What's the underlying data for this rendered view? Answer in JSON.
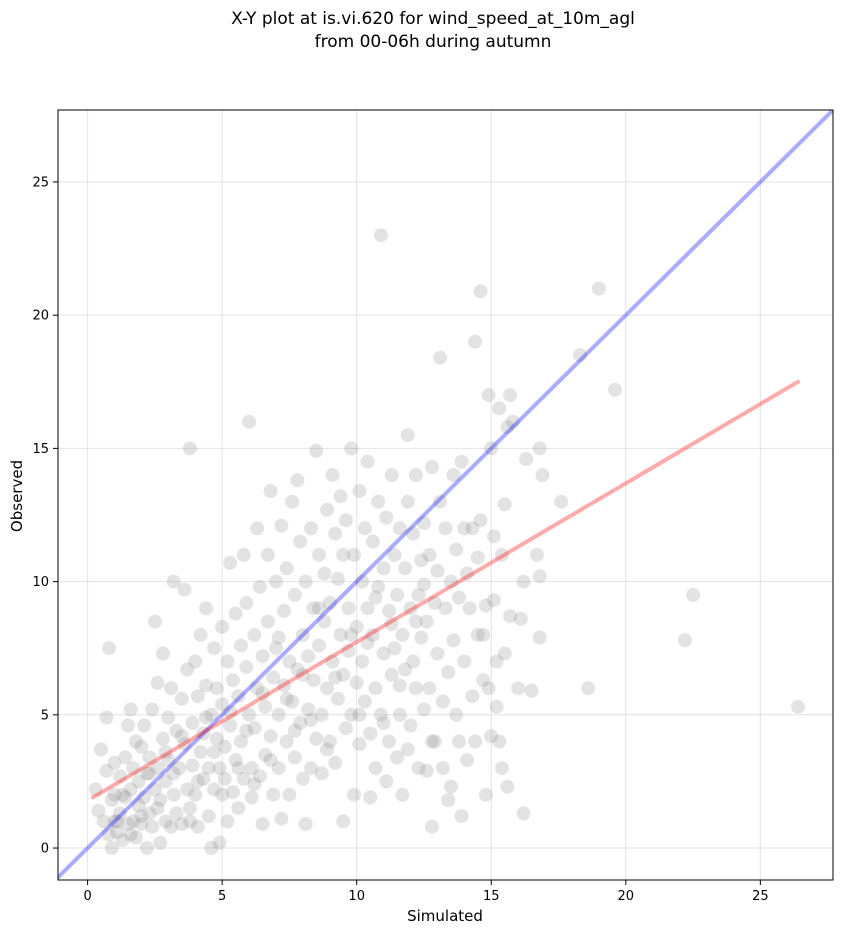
{
  "title_lines": [
    "X-Y plot at is.vi.620 for wind_speed_at_10m_agl",
    "from 00-06h during autumn"
  ],
  "chart_data": {
    "type": "scatter",
    "title": "X-Y plot at is.vi.620 for wind_speed_at_10m_agl\nfrom 00-06h during autumn",
    "xlabel": "Simulated",
    "ylabel": "Observed",
    "xlim": [
      -1.1,
      27.7
    ],
    "ylim": [
      -1.2,
      27.7
    ],
    "xticks": [
      0,
      5,
      10,
      15,
      20,
      25
    ],
    "yticks": [
      0,
      5,
      10,
      15,
      20,
      25
    ],
    "xtick_labels": [
      "0",
      "5",
      "10",
      "15",
      "20",
      "25"
    ],
    "ytick_labels": [
      "0",
      "5",
      "10",
      "15",
      "20",
      "25"
    ],
    "grid": true,
    "lines": [
      {
        "kind": "one-to-one",
        "color": "#0000ff",
        "x": [
          -1.1,
          27.7
        ],
        "y": [
          -1.1,
          27.7
        ]
      },
      {
        "kind": "regression",
        "color": "#ff0000",
        "x": [
          0.2,
          26.4
        ],
        "y": [
          1.9,
          17.5
        ]
      }
    ],
    "point_color": "#808080",
    "points": [
      [
        0.3,
        2.2
      ],
      [
        0.4,
        1.4
      ],
      [
        0.5,
        3.7
      ],
      [
        0.6,
        1.0
      ],
      [
        0.7,
        4.9
      ],
      [
        0.7,
        2.9
      ],
      [
        0.8,
        0.5
      ],
      [
        0.8,
        7.5
      ],
      [
        0.9,
        1.8
      ],
      [
        0.9,
        0.0
      ],
      [
        1.0,
        3.2
      ],
      [
        1.0,
        2.0
      ],
      [
        1.1,
        1.0
      ],
      [
        1.1,
        0.6
      ],
      [
        1.2,
        2.7
      ],
      [
        1.2,
        1.3
      ],
      [
        1.3,
        0.3
      ],
      [
        1.4,
        3.4
      ],
      [
        1.4,
        1.9
      ],
      [
        1.5,
        4.6
      ],
      [
        1.5,
        0.9
      ],
      [
        1.6,
        2.2
      ],
      [
        1.6,
        5.2
      ],
      [
        1.7,
        1.0
      ],
      [
        1.7,
        3.0
      ],
      [
        1.8,
        0.4
      ],
      [
        1.8,
        4.0
      ],
      [
        1.9,
        1.6
      ],
      [
        1.9,
        2.5
      ],
      [
        2.0,
        3.8
      ],
      [
        2.0,
        0.9
      ],
      [
        2.1,
        1.9
      ],
      [
        2.1,
        4.6
      ],
      [
        2.2,
        0.0
      ],
      [
        2.2,
        2.8
      ],
      [
        2.3,
        3.4
      ],
      [
        2.3,
        1.3
      ],
      [
        2.4,
        5.2
      ],
      [
        2.4,
        0.8
      ],
      [
        2.5,
        2.2
      ],
      [
        2.5,
        8.5
      ],
      [
        2.6,
        6.2
      ],
      [
        2.6,
        3.0
      ],
      [
        2.7,
        0.2
      ],
      [
        2.7,
        1.8
      ],
      [
        2.8,
        4.1
      ],
      [
        2.8,
        7.3
      ],
      [
        2.9,
        2.5
      ],
      [
        2.9,
        1.0
      ],
      [
        3.0,
        4.9
      ],
      [
        3.0,
        3.3
      ],
      [
        3.1,
        0.8
      ],
      [
        3.1,
        6.0
      ],
      [
        3.2,
        10.0
      ],
      [
        3.2,
        2.0
      ],
      [
        3.3,
        4.4
      ],
      [
        3.3,
        1.3
      ],
      [
        3.4,
        3.0
      ],
      [
        3.5,
        5.6
      ],
      [
        3.5,
        0.9
      ],
      [
        3.6,
        9.7
      ],
      [
        3.6,
        3.9
      ],
      [
        3.7,
        2.2
      ],
      [
        3.7,
        6.7
      ],
      [
        3.8,
        15.0
      ],
      [
        3.8,
        1.5
      ],
      [
        3.9,
        4.7
      ],
      [
        3.9,
        3.1
      ],
      [
        4.0,
        7.0
      ],
      [
        4.0,
        2.0
      ],
      [
        4.1,
        5.7
      ],
      [
        4.1,
        0.8
      ],
      [
        4.2,
        3.6
      ],
      [
        4.2,
        8.0
      ],
      [
        4.3,
        2.6
      ],
      [
        4.3,
        4.3
      ],
      [
        4.4,
        6.1
      ],
      [
        4.4,
        9.0
      ],
      [
        4.5,
        1.2
      ],
      [
        4.5,
        3.0
      ],
      [
        4.6,
        5.0
      ],
      [
        4.6,
        0.0
      ],
      [
        4.7,
        7.5
      ],
      [
        4.7,
        2.2
      ],
      [
        4.8,
        4.1
      ],
      [
        4.8,
        6.0
      ],
      [
        4.9,
        3.0
      ],
      [
        4.9,
        0.2
      ],
      [
        5.0,
        8.3
      ],
      [
        5.0,
        5.4
      ],
      [
        5.1,
        2.6
      ],
      [
        5.1,
        3.8
      ],
      [
        5.2,
        7.0
      ],
      [
        5.2,
        1.0
      ],
      [
        5.3,
        10.7
      ],
      [
        5.3,
        4.6
      ],
      [
        5.4,
        6.3
      ],
      [
        5.4,
        2.1
      ],
      [
        5.5,
        8.8
      ],
      [
        5.5,
        3.3
      ],
      [
        5.6,
        5.7
      ],
      [
        5.6,
        1.5
      ],
      [
        5.7,
        7.6
      ],
      [
        5.7,
        4.0
      ],
      [
        5.8,
        11.0
      ],
      [
        5.8,
        2.6
      ],
      [
        5.9,
        6.8
      ],
      [
        5.9,
        9.2
      ],
      [
        6.0,
        5.0
      ],
      [
        6.0,
        16.0
      ],
      [
        6.1,
        3.0
      ],
      [
        6.1,
        1.9
      ],
      [
        6.2,
        8.0
      ],
      [
        6.2,
        4.5
      ],
      [
        6.3,
        12.0
      ],
      [
        6.3,
        6.0
      ],
      [
        6.4,
        2.7
      ],
      [
        6.4,
        9.8
      ],
      [
        6.5,
        7.2
      ],
      [
        6.5,
        0.9
      ],
      [
        6.6,
        5.3
      ],
      [
        6.6,
        3.5
      ],
      [
        6.7,
        11.0
      ],
      [
        6.7,
        8.5
      ],
      [
        6.8,
        13.4
      ],
      [
        6.8,
        4.2
      ],
      [
        6.9,
        6.4
      ],
      [
        6.9,
        2.0
      ],
      [
        7.0,
        10.0
      ],
      [
        7.0,
        7.5
      ],
      [
        7.1,
        5.0
      ],
      [
        7.1,
        3.0
      ],
      [
        7.2,
        12.1
      ],
      [
        7.2,
        1.1
      ],
      [
        7.3,
        8.9
      ],
      [
        7.3,
        6.1
      ],
      [
        7.4,
        4.0
      ],
      [
        7.4,
        10.5
      ],
      [
        7.5,
        2.0
      ],
      [
        7.5,
        7.0
      ],
      [
        7.6,
        13.0
      ],
      [
        7.6,
        5.5
      ],
      [
        7.7,
        9.5
      ],
      [
        7.7,
        3.4
      ],
      [
        7.8,
        13.8
      ],
      [
        7.8,
        6.7
      ],
      [
        7.9,
        11.5
      ],
      [
        7.9,
        4.7
      ],
      [
        8.0,
        8.0
      ],
      [
        8.0,
        2.6
      ],
      [
        8.1,
        10.0
      ],
      [
        8.1,
        0.9
      ],
      [
        8.2,
        7.2
      ],
      [
        8.2,
        5.2
      ],
      [
        8.3,
        12.0
      ],
      [
        8.3,
        3.0
      ],
      [
        8.4,
        9.0
      ],
      [
        8.4,
        6.3
      ],
      [
        8.5,
        14.9
      ],
      [
        8.5,
        4.1
      ],
      [
        8.6,
        11.0
      ],
      [
        8.6,
        7.6
      ],
      [
        8.7,
        5.0
      ],
      [
        8.7,
        2.8
      ],
      [
        8.8,
        10.3
      ],
      [
        8.8,
        8.5
      ],
      [
        8.9,
        12.7
      ],
      [
        8.9,
        6.0
      ],
      [
        9.0,
        4.0
      ],
      [
        9.0,
        9.2
      ],
      [
        9.1,
        14.0
      ],
      [
        9.1,
        7.0
      ],
      [
        9.2,
        11.8
      ],
      [
        9.2,
        3.2
      ],
      [
        9.3,
        5.6
      ],
      [
        9.3,
        10.1
      ],
      [
        9.4,
        13.2
      ],
      [
        9.4,
        8.0
      ],
      [
        9.5,
        6.5
      ],
      [
        9.5,
        1.0
      ],
      [
        9.6,
        12.3
      ],
      [
        9.6,
        4.5
      ],
      [
        9.7,
        9.0
      ],
      [
        9.7,
        7.4
      ],
      [
        9.8,
        15.0
      ],
      [
        9.8,
        5.0
      ],
      [
        9.9,
        11.0
      ],
      [
        9.9,
        2.0
      ],
      [
        10.0,
        8.3
      ],
      [
        10.0,
        6.2
      ],
      [
        10.1,
        13.4
      ],
      [
        10.1,
        3.9
      ],
      [
        10.2,
        10.0
      ],
      [
        10.2,
        7.0
      ],
      [
        10.3,
        12.0
      ],
      [
        10.3,
        5.5
      ],
      [
        10.4,
        9.0
      ],
      [
        10.4,
        14.5
      ],
      [
        10.5,
        4.3
      ],
      [
        10.5,
        1.9
      ],
      [
        10.6,
        11.5
      ],
      [
        10.6,
        8.0
      ],
      [
        10.7,
        6.0
      ],
      [
        10.7,
        3.0
      ],
      [
        10.8,
        13.0
      ],
      [
        10.8,
        9.8
      ],
      [
        10.9,
        23.0
      ],
      [
        10.9,
        5.0
      ],
      [
        11.0,
        7.3
      ],
      [
        11.0,
        10.5
      ],
      [
        11.1,
        12.4
      ],
      [
        11.1,
        2.5
      ],
      [
        11.2,
        8.9
      ],
      [
        11.2,
        4.0
      ],
      [
        11.3,
        6.5
      ],
      [
        11.3,
        14.0
      ],
      [
        11.4,
        11.0
      ],
      [
        11.4,
        7.5
      ],
      [
        11.5,
        3.4
      ],
      [
        11.5,
        9.5
      ],
      [
        11.6,
        12.0
      ],
      [
        11.6,
        5.0
      ],
      [
        11.7,
        8.0
      ],
      [
        11.7,
        2.0
      ],
      [
        11.8,
        10.5
      ],
      [
        11.8,
        6.7
      ],
      [
        11.9,
        13.0
      ],
      [
        11.9,
        15.5
      ],
      [
        12.0,
        9.0
      ],
      [
        12.0,
        4.6
      ],
      [
        12.1,
        7.0
      ],
      [
        12.1,
        11.8
      ],
      [
        12.2,
        6.0
      ],
      [
        12.2,
        14.0
      ],
      [
        12.3,
        9.5
      ],
      [
        12.3,
        3.0
      ],
      [
        12.4,
        10.8
      ],
      [
        12.4,
        7.9
      ],
      [
        12.5,
        12.2
      ],
      [
        12.5,
        5.2
      ],
      [
        12.6,
        8.5
      ],
      [
        12.6,
        2.9
      ],
      [
        12.7,
        11.0
      ],
      [
        12.7,
        6.0
      ],
      [
        12.8,
        14.3
      ],
      [
        12.8,
        0.8
      ],
      [
        12.9,
        9.2
      ],
      [
        12.9,
        4.0
      ],
      [
        13.0,
        10.4
      ],
      [
        13.0,
        7.3
      ],
      [
        13.1,
        18.4
      ],
      [
        13.1,
        13.0
      ],
      [
        13.2,
        5.5
      ],
      [
        13.2,
        3.0
      ],
      [
        13.3,
        9.0
      ],
      [
        13.3,
        12.0
      ],
      [
        13.4,
        6.6
      ],
      [
        13.4,
        1.8
      ],
      [
        13.5,
        10.0
      ],
      [
        13.5,
        2.3
      ],
      [
        13.6,
        14.0
      ],
      [
        13.6,
        7.8
      ],
      [
        13.7,
        11.2
      ],
      [
        13.7,
        5.0
      ],
      [
        13.8,
        4.0
      ],
      [
        13.8,
        9.4
      ],
      [
        13.9,
        14.5
      ],
      [
        13.9,
        1.2
      ],
      [
        14.0,
        7.0
      ],
      [
        14.0,
        12.0
      ],
      [
        14.1,
        10.3
      ],
      [
        14.1,
        3.3
      ],
      [
        14.2,
        9.0
      ],
      [
        14.3,
        12.0
      ],
      [
        14.3,
        5.7
      ],
      [
        14.4,
        19.0
      ],
      [
        14.4,
        4.0
      ],
      [
        14.5,
        8.0
      ],
      [
        14.5,
        10.9
      ],
      [
        14.6,
        20.9
      ],
      [
        14.6,
        12.3
      ],
      [
        14.7,
        6.3
      ],
      [
        14.7,
        8.0
      ],
      [
        14.8,
        9.1
      ],
      [
        14.8,
        2.0
      ],
      [
        14.9,
        17.0
      ],
      [
        14.9,
        6.0
      ],
      [
        15.0,
        15.0
      ],
      [
        15.0,
        4.2
      ],
      [
        15.1,
        9.3
      ],
      [
        15.1,
        11.7
      ],
      [
        15.2,
        7.0
      ],
      [
        15.2,
        5.3
      ],
      [
        15.3,
        16.5
      ],
      [
        15.3,
        4.0
      ],
      [
        15.4,
        11.0
      ],
      [
        15.4,
        3.0
      ],
      [
        15.5,
        12.9
      ],
      [
        15.5,
        7.3
      ],
      [
        15.6,
        15.8
      ],
      [
        15.6,
        2.3
      ],
      [
        15.7,
        8.7
      ],
      [
        15.7,
        17.0
      ],
      [
        15.8,
        16.0
      ],
      [
        16.0,
        6.0
      ],
      [
        16.1,
        8.6
      ],
      [
        16.2,
        10.0
      ],
      [
        16.2,
        1.3
      ],
      [
        16.3,
        14.6
      ],
      [
        16.5,
        5.9
      ],
      [
        16.7,
        11.0
      ],
      [
        16.8,
        10.2
      ],
      [
        16.8,
        7.9
      ],
      [
        16.8,
        15.0
      ],
      [
        16.9,
        14.0
      ],
      [
        17.6,
        13.0
      ],
      [
        18.3,
        18.5
      ],
      [
        18.6,
        6.0
      ],
      [
        19.0,
        21.0
      ],
      [
        19.6,
        17.2
      ],
      [
        22.2,
        7.8
      ],
      [
        22.5,
        9.5
      ],
      [
        26.4,
        5.3
      ],
      [
        1.0,
        1.0
      ],
      [
        1.3,
        2.0
      ],
      [
        1.6,
        0.5
      ],
      [
        2.0,
        1.2
      ],
      [
        2.3,
        2.8
      ],
      [
        2.6,
        1.5
      ],
      [
        2.9,
        3.6
      ],
      [
        3.2,
        2.8
      ],
      [
        3.5,
        4.2
      ],
      [
        3.8,
        1.0
      ],
      [
        4.1,
        2.5
      ],
      [
        4.4,
        4.9
      ],
      [
        4.7,
        3.6
      ],
      [
        5.0,
        2.0
      ],
      [
        5.3,
        5.1
      ],
      [
        5.6,
        3.0
      ],
      [
        5.9,
        4.4
      ],
      [
        6.2,
        2.4
      ],
      [
        6.5,
        5.8
      ],
      [
        6.8,
        3.3
      ],
      [
        7.1,
        7.9
      ],
      [
        7.4,
        5.6
      ],
      [
        7.7,
        4.4
      ],
      [
        8.0,
        6.5
      ],
      [
        8.3,
        4.8
      ],
      [
        8.6,
        9.0
      ],
      [
        8.9,
        3.7
      ],
      [
        9.2,
        6.4
      ],
      [
        9.5,
        11.0
      ],
      [
        9.8,
        8.0
      ],
      [
        10.1,
        5.0
      ],
      [
        10.4,
        7.7
      ],
      [
        10.7,
        9.4
      ],
      [
        11.0,
        4.7
      ],
      [
        11.3,
        8.4
      ],
      [
        11.6,
        6.1
      ],
      [
        11.9,
        3.7
      ],
      [
        12.2,
        8.5
      ],
      [
        12.5,
        9.9
      ],
      [
        12.8,
        4.0
      ]
    ]
  }
}
